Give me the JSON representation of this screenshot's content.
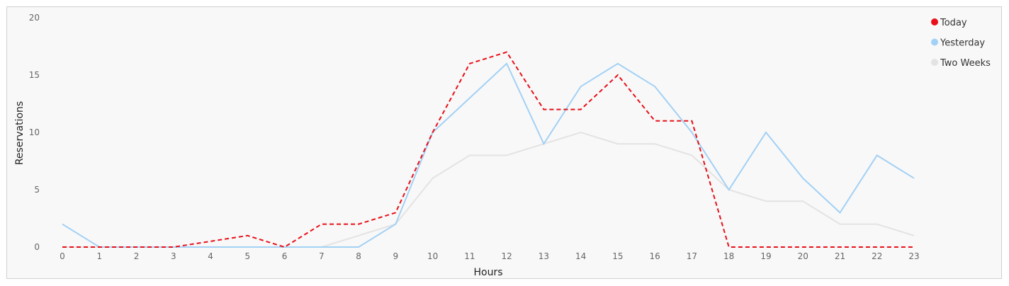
{
  "chart_data": {
    "type": "line",
    "title": "",
    "xlabel": "Hours",
    "ylabel": "Reservations",
    "x": [
      0,
      1,
      2,
      3,
      4,
      5,
      6,
      7,
      8,
      9,
      10,
      11,
      12,
      13,
      14,
      15,
      16,
      17,
      18,
      19,
      20,
      21,
      22,
      23
    ],
    "xticks": [
      "0",
      "1",
      "2",
      "3",
      "4",
      "5",
      "6",
      "7",
      "8",
      "9",
      "10",
      "11",
      "12",
      "13",
      "14",
      "15",
      "16",
      "17",
      "18",
      "19",
      "20",
      "21",
      "22",
      "23"
    ],
    "ylim": [
      0,
      20
    ],
    "yticks": [
      "0",
      "5",
      "10",
      "15",
      "20"
    ],
    "grid": false,
    "legend_position": "top-right",
    "series": [
      {
        "name": "Today",
        "color": "#e8101a",
        "dashed": true,
        "values": [
          0,
          0,
          0,
          0,
          0.5,
          1,
          0,
          2,
          2,
          3,
          10,
          16,
          17,
          12,
          12,
          15,
          11,
          11,
          0,
          0,
          0,
          0,
          0,
          0
        ]
      },
      {
        "name": "Yesterday",
        "color": "#a3d1f5",
        "dashed": false,
        "values": [
          2,
          0,
          0,
          0,
          0,
          0,
          0,
          0,
          0,
          2,
          10,
          13,
          16,
          9,
          14,
          16,
          14,
          10,
          5,
          10,
          6,
          3,
          8,
          6
        ]
      },
      {
        "name": "Two Weeks",
        "color": "#e3e3e3",
        "dashed": false,
        "values": [
          0,
          0,
          0,
          0,
          0,
          0,
          0,
          0,
          1,
          2,
          6,
          8,
          8,
          9,
          10,
          9,
          9,
          8,
          5,
          4,
          4,
          2,
          2,
          1
        ]
      }
    ]
  }
}
